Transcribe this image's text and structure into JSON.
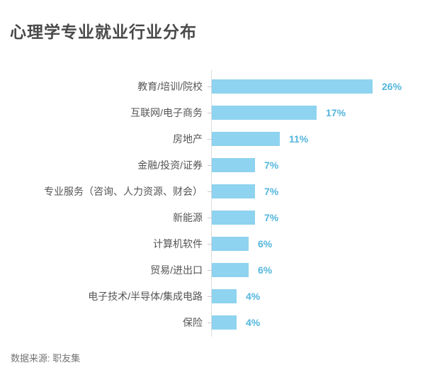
{
  "page": {
    "title": "心理学专业就业行业分布",
    "source": "数据来源: 职友集"
  },
  "chart_data": {
    "type": "bar",
    "orientation": "horizontal",
    "title": "心理学专业就业行业分布",
    "categories": [
      "教育/培训/院校",
      "互联网/电子商务",
      "房地产",
      "金融/投资/证券",
      "专业服务（咨询、人力资源、财会）",
      "新能源",
      "计算机软件",
      "贸易/进出口",
      "电子技术/半导体/集成电路",
      "保险"
    ],
    "values": [
      26,
      17,
      11,
      7,
      7,
      7,
      6,
      6,
      4,
      4
    ],
    "unit": "%",
    "value_labels": [
      "26%",
      "17%",
      "11%",
      "7%",
      "7%",
      "7%",
      "6%",
      "6%",
      "4%",
      "4%"
    ],
    "xlim": [
      0,
      30
    ],
    "grid": false,
    "legend": "none",
    "value_label_position": "right-of-bar",
    "source": "数据来源: 职友集",
    "colors": {
      "bar": "#8ED3EF",
      "value_label": "#54B6DD",
      "category_label": "#555555",
      "axis_line": "#DDDDDD",
      "title": "#4A4A4A",
      "source": "#737373"
    }
  }
}
